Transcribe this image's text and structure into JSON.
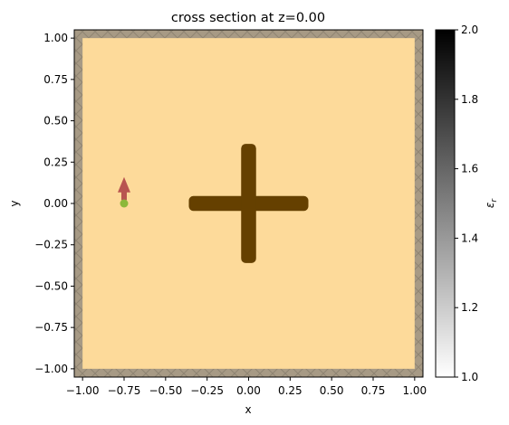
{
  "chart_data": {
    "type": "heatmap",
    "title": "cross section at z=0.00",
    "xlabel": "x",
    "ylabel": "y",
    "xlim": [
      -1.05,
      1.05
    ],
    "ylim": [
      -1.05,
      1.05
    ],
    "xticks": [
      -1.0,
      -0.75,
      -0.5,
      -0.25,
      0.0,
      0.25,
      0.5,
      0.75,
      1.0
    ],
    "yticks": [
      -1.0,
      -0.75,
      -0.5,
      -0.25,
      0.0,
      0.25,
      0.5,
      0.75,
      1.0
    ],
    "xtick_labels": [
      "−1.00",
      "−0.75",
      "−0.50",
      "−0.25",
      "0.00",
      "0.25",
      "0.50",
      "0.75",
      "1.00"
    ],
    "ytick_labels": [
      "−1.00",
      "−0.75",
      "−0.50",
      "−0.25",
      "0.00",
      "0.25",
      "0.50",
      "0.75",
      "1.00"
    ],
    "background": {
      "x0": -1.0,
      "x1": 1.0,
      "y0": -1.0,
      "y1": 1.0,
      "color": "#fdda9a"
    },
    "pml_border": {
      "x0": -1.05,
      "x1": 1.05,
      "y0": -1.05,
      "y1": 1.05,
      "thickness": 0.06,
      "color": "#a79a85"
    },
    "structure": {
      "shape": "cross",
      "arm_half_length": 0.36,
      "arm_half_width": 0.045,
      "center": [
        0,
        0
      ],
      "color": "#654000"
    },
    "source": {
      "x": -0.75,
      "y": 0.0,
      "color": "#8cb83a"
    },
    "direction_arrow": {
      "x": -0.75,
      "y0": 0.02,
      "y1": 0.16,
      "color": "#b85450"
    },
    "colorbar": {
      "label": "ε",
      "label_sub": "r",
      "range": [
        1.0,
        2.0
      ],
      "ticks": [
        1.0,
        1.2,
        1.4,
        1.6,
        1.8,
        2.0
      ],
      "tick_labels": [
        "1.0",
        "1.2",
        "1.4",
        "1.6",
        "1.8",
        "2.0"
      ],
      "cmap": [
        "#ffffff",
        "#000000"
      ]
    }
  }
}
